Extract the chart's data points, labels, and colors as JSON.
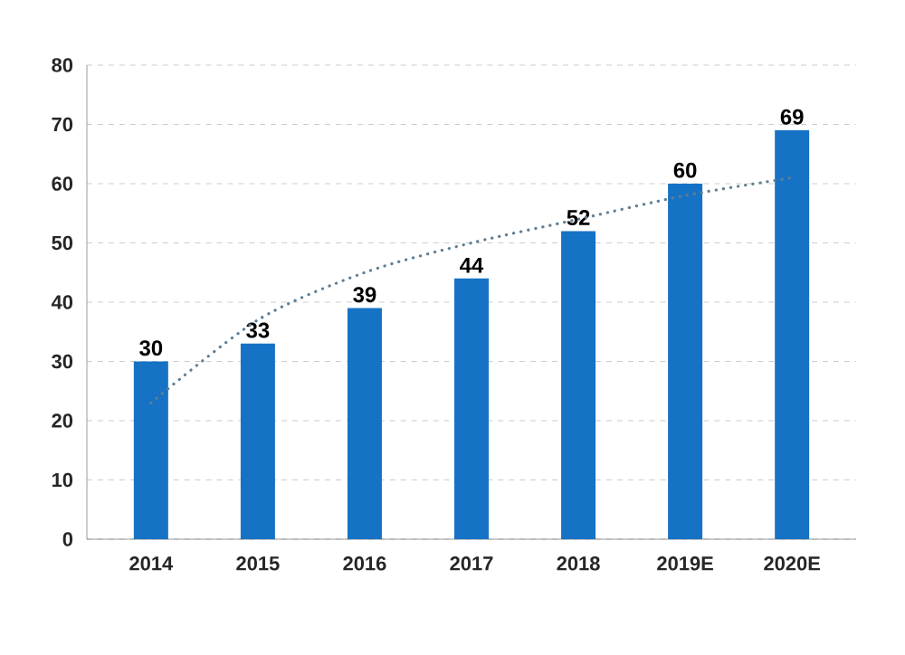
{
  "chart_data": {
    "type": "bar",
    "categories": [
      "2014",
      "2015",
      "2016",
      "2017",
      "2018",
      "2019E",
      "2020E"
    ],
    "series": [
      {
        "color": "#1672c4",
        "values": [
          30,
          33,
          39,
          44,
          52,
          60,
          69
        ],
        "value_labels": [
          "30",
          "33",
          "39",
          "44",
          "52",
          "60",
          "69"
        ]
      },
      {
        "type": "line",
        "color": "#5f7f96",
        "line_style": "dotted",
        "marker": "none",
        "values": [
          23,
          37,
          45,
          50,
          54,
          58,
          61
        ]
      }
    ],
    "ylim": [
      0,
      80
    ],
    "yticks": [
      0,
      10,
      20,
      30,
      40,
      50,
      60,
      70,
      80
    ],
    "grid": "y"
  }
}
